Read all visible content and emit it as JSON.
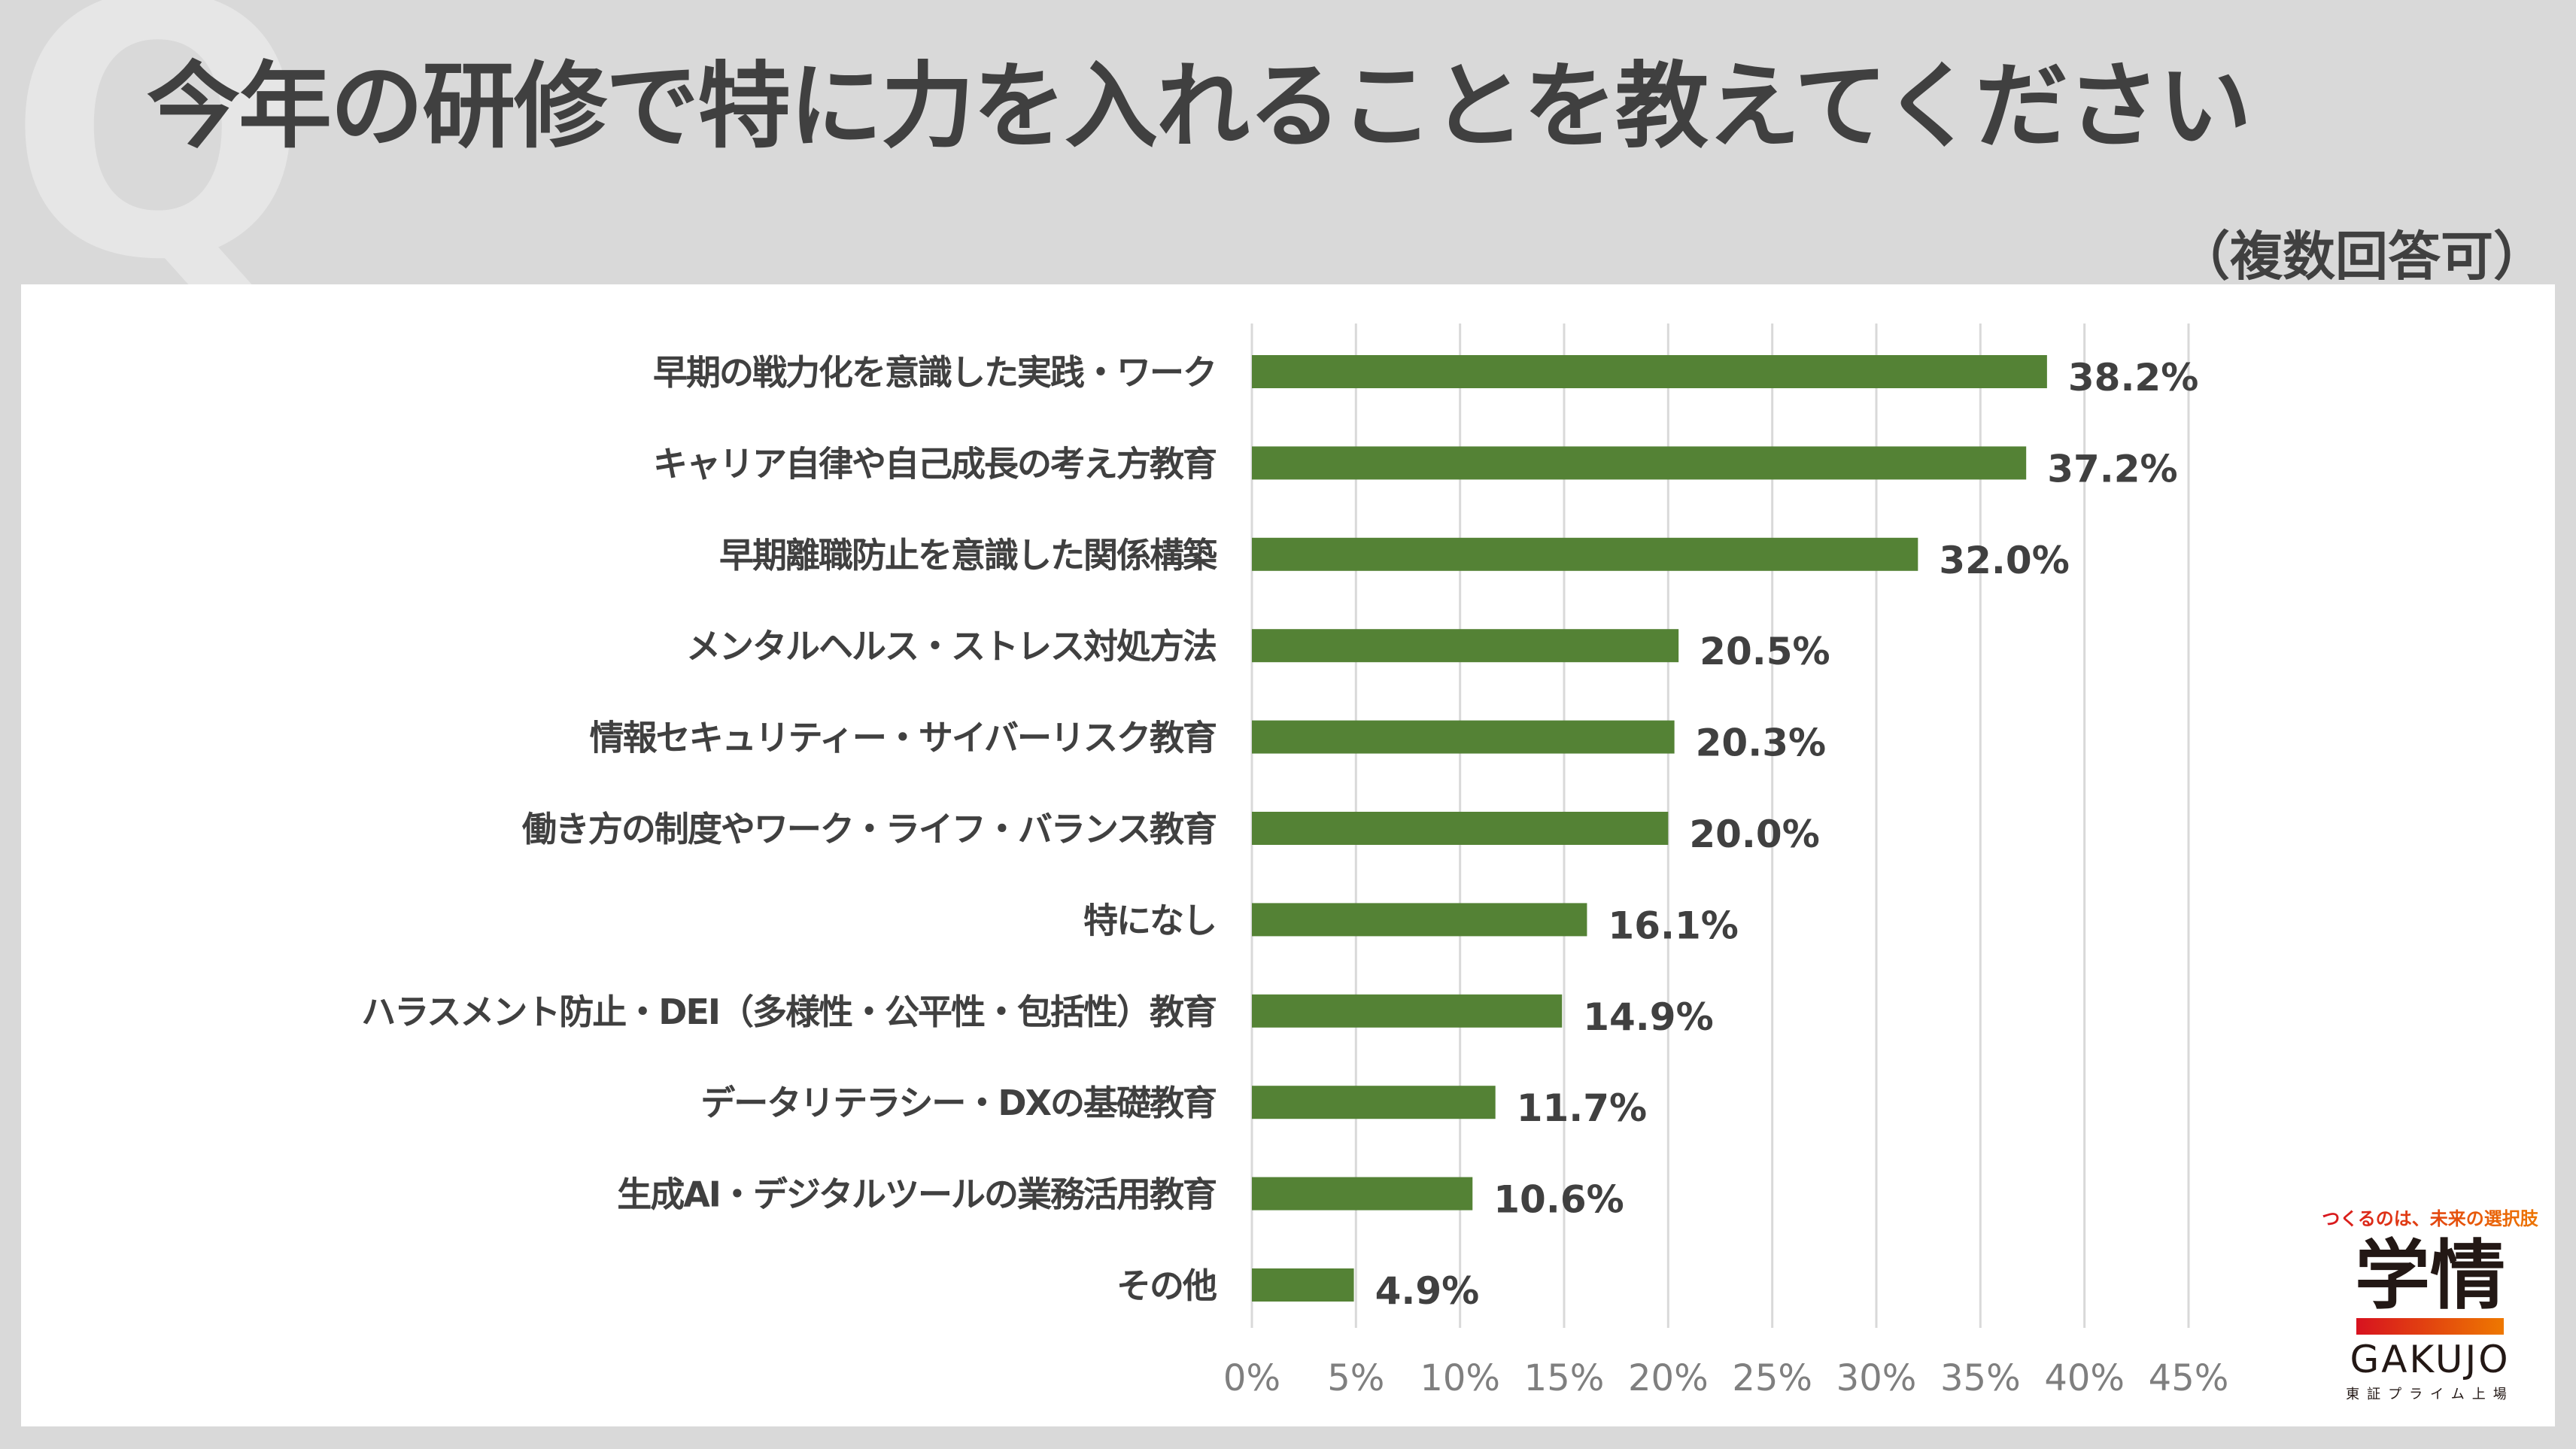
{
  "header": {
    "watermark": "Q",
    "title": "今年の研修で特に力を入れることを教えてください",
    "note": "（複数回答可）"
  },
  "logo": {
    "tagline": "つくるのは、未来の選択肢",
    "name_ja": "学情",
    "name_en": "GAKUJO",
    "listing": "東証プライム上場",
    "gradient_start": "#d7121f",
    "gradient_end": "#ee7800"
  },
  "chart_data": {
    "type": "bar",
    "orientation": "horizontal",
    "categories": [
      "早期の戦力化を意識した実践・ワーク",
      "キャリア自律や自己成長の考え方教育",
      "早期離職防止を意識した関係構築",
      "メンタルヘルス・ストレス対処方法",
      "情報セキュリティー・サイバーリスク教育",
      "働き方の制度やワーク・ライフ・バランス教育",
      "特になし",
      "ハラスメント防止・DEI（多様性・公平性・包括性）教育",
      "データリテラシー・DXの基礎教育",
      "生成AI・デジタルツールの業務活用教育",
      "その他"
    ],
    "values": [
      38.2,
      37.2,
      32.0,
      20.5,
      20.3,
      20.0,
      16.1,
      14.9,
      11.7,
      10.6,
      4.9
    ],
    "value_labels": [
      "38.2%",
      "37.2%",
      "32.0%",
      "20.5%",
      "20.3%",
      "20.0%",
      "16.1%",
      "14.9%",
      "11.7%",
      "10.6%",
      "4.9%"
    ],
    "xlim": [
      0,
      45
    ],
    "xticks": [
      "0%",
      "5%",
      "10%",
      "15%",
      "20%",
      "25%",
      "30%",
      "35%",
      "40%",
      "45%"
    ],
    "grid": true,
    "bar_color": "#548235",
    "title": "",
    "xlabel": "",
    "ylabel": ""
  }
}
